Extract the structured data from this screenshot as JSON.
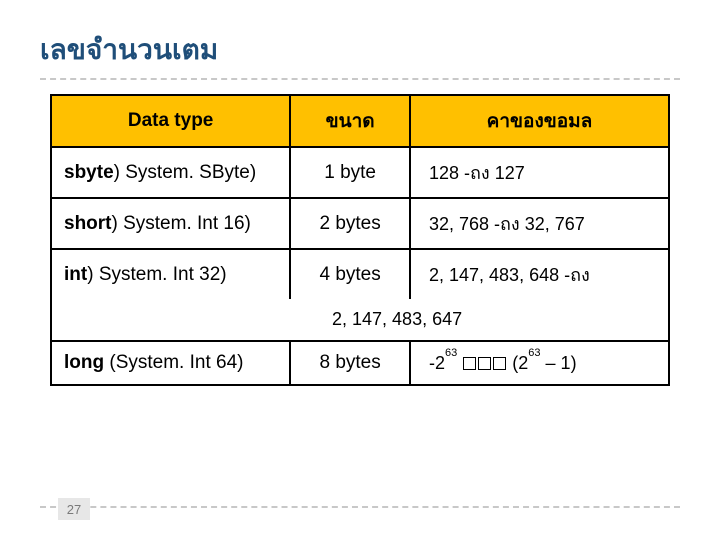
{
  "title": "เลขจำนวนเตม",
  "page_number": "27",
  "table": {
    "headers": {
      "col1": "Data type",
      "col2": "ขนาด",
      "col3": "คาของขอมล"
    },
    "rows": [
      {
        "type_bold": "sbyte",
        "type_rest": ") System. SByte)",
        "size": "1 byte",
        "range": "128 -ถง   127"
      },
      {
        "type_bold": "short",
        "type_rest": ") System. Int 16)",
        "size": "2 bytes",
        "range": "32, 768 -ถง   32, 767"
      },
      {
        "type_bold": "int",
        "type_rest": ") System. Int 32)",
        "size": "4 bytes",
        "range": " 2, 147, 483, 648 -ถง"
      },
      {
        "continuation": "2, 147, 483, 647"
      },
      {
        "type_bold": "long",
        "type_rest": " (System. Int 64)",
        "size": "8 bytes",
        "range_html": true,
        "range_pre": "-2",
        "range_sup1": "63",
        "range_mid": "       (2",
        "range_sup2": "63",
        "range_post": " – 1)"
      }
    ]
  },
  "colors": {
    "title": "#1f4e79",
    "header_bg": "#ffc000",
    "border": "#000000",
    "dashed": "#c8c8c8",
    "page_bg": "#e7e7e7",
    "page_fg": "#7a7a7a"
  }
}
